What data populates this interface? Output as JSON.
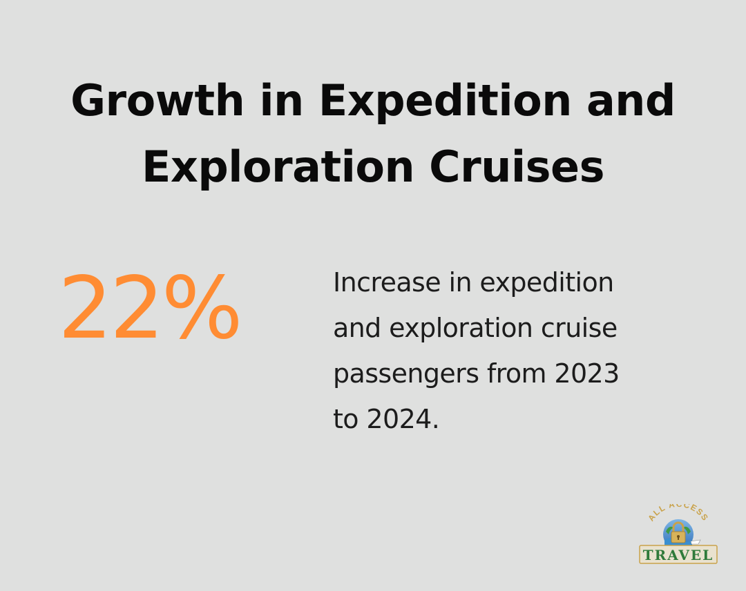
{
  "title_lines": [
    "Growth in Expedition and",
    "Exploration Cruises"
  ],
  "stat": {
    "value": "22%",
    "description_lines": [
      "Increase in expedition",
      "and exploration cruise",
      "passengers from 2023",
      "to 2024."
    ]
  },
  "logo": {
    "arc_text": "ALL ACCESS",
    "wordmark": "TRAVEL"
  },
  "colors": {
    "background": "#dfe0df",
    "accent": "#ff8c33",
    "text": "#0a0a0a",
    "logo_green": "#2f7a3a",
    "logo_gold": "#c9a24a",
    "logo_blue": "#2f6fb8"
  }
}
